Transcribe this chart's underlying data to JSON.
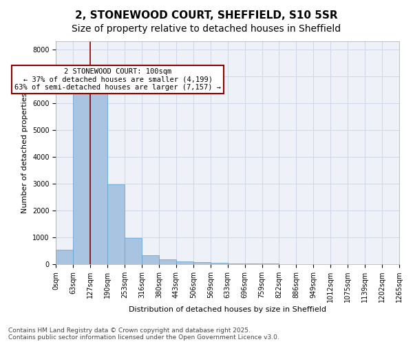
{
  "title1": "2, STONEWOOD COURT, SHEFFIELD, S10 5SR",
  "title2": "Size of property relative to detached houses in Sheffield",
  "xlabel": "Distribution of detached houses by size in Sheffield",
  "ylabel": "Number of detached properties",
  "bar_values": [
    550,
    6450,
    6450,
    2980,
    980,
    350,
    180,
    110,
    80,
    60,
    40,
    30,
    20,
    15,
    10,
    8,
    6,
    5,
    4,
    3
  ],
  "bar_labels": [
    "0sqm",
    "63sqm",
    "127sqm",
    "190sqm",
    "253sqm",
    "316sqm",
    "380sqm",
    "443sqm",
    "506sqm",
    "569sqm",
    "633sqm",
    "696sqm",
    "759sqm",
    "822sqm",
    "886sqm",
    "949sqm",
    "1012sqm",
    "1075sqm",
    "1139sqm",
    "1202sqm",
    "1265sqm"
  ],
  "bar_color": "#a8c4e0",
  "bar_edge_color": "#5a9fd4",
  "vline_x": 1.5,
  "vline_color": "#8b0000",
  "annotation_text": "2 STONEWOOD COURT: 100sqm\n← 37% of detached houses are smaller (4,199)\n63% of semi-detached houses are larger (7,157) →",
  "annotation_box_color": "white",
  "annotation_box_edge": "#8b0000",
  "ylim": [
    0,
    8300
  ],
  "yticks": [
    0,
    1000,
    2000,
    3000,
    4000,
    5000,
    6000,
    7000,
    8000
  ],
  "grid_color": "#d0d8e8",
  "bg_color": "#eef2f8",
  "footnote": "Contains HM Land Registry data © Crown copyright and database right 2025.\nContains public sector information licensed under the Open Government Licence v3.0.",
  "title_fontsize": 11,
  "subtitle_fontsize": 10,
  "annotation_fontsize": 7.5,
  "axis_label_fontsize": 8,
  "tick_fontsize": 7,
  "footnote_fontsize": 6.5
}
